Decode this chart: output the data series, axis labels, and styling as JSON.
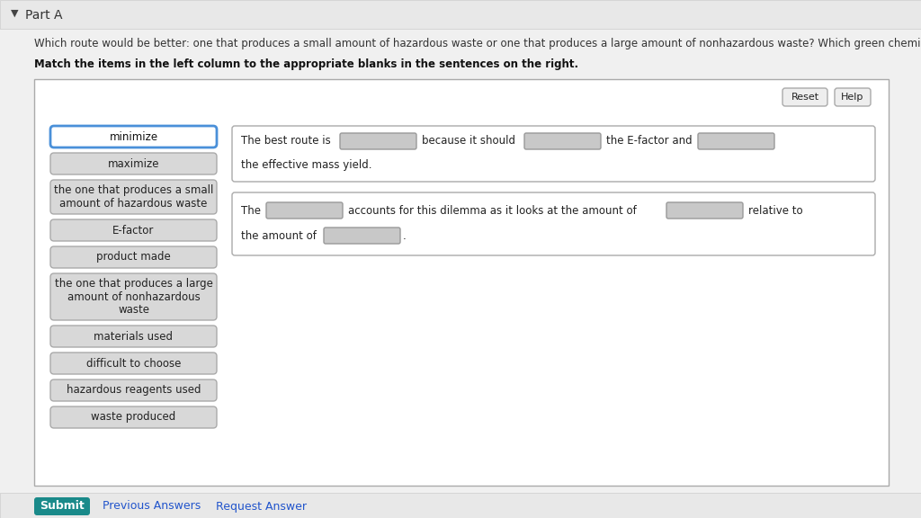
{
  "bg_color": "#f0f0f0",
  "page_bg": "#f0f0f0",
  "white": "#ffffff",
  "title_text": "Part A",
  "question_text": "Which route would be better: one that produces a small amount of hazardous waste or one that produces a large amount of nonhazardous waste? Which green chemistry metric accounts for this dilemma?",
  "bold_instruction": "Match the items in the left column to the appropriate blanks in the sentences on the right.",
  "left_buttons": [
    {
      "label": "minimize",
      "highlight": true,
      "lines": 1
    },
    {
      "label": "maximize",
      "highlight": false,
      "lines": 1
    },
    {
      "label": "the one that produces a small\namount of hazardous waste",
      "highlight": false,
      "lines": 2
    },
    {
      "label": "E-factor",
      "highlight": false,
      "lines": 1
    },
    {
      "label": "product made",
      "highlight": false,
      "lines": 1
    },
    {
      "label": "the one that produces a large\namount of nonhazardous\nwaste",
      "highlight": false,
      "lines": 3
    },
    {
      "label": "materials used",
      "highlight": false,
      "lines": 1
    },
    {
      "label": "difficult to choose",
      "highlight": false,
      "lines": 1
    },
    {
      "label": "hazardous reagents used",
      "highlight": false,
      "lines": 1
    },
    {
      "label": "waste produced",
      "highlight": false,
      "lines": 1
    }
  ],
  "highlight_color": "#4a90d9",
  "btn_bg": "#d8d8d8",
  "btn_border": "#aaaaaa",
  "input_bg": "#c8c8c8",
  "input_border": "#999999",
  "box_border": "#aaaaaa",
  "submit_bg": "#1a8a8a",
  "submit_fg": "#ffffff",
  "link_color": "#2255cc",
  "reset_bg": "#eeeeee",
  "reset_border": "#aaaaaa",
  "header_bg": "#e8e8e8",
  "header_border": "#cccccc"
}
